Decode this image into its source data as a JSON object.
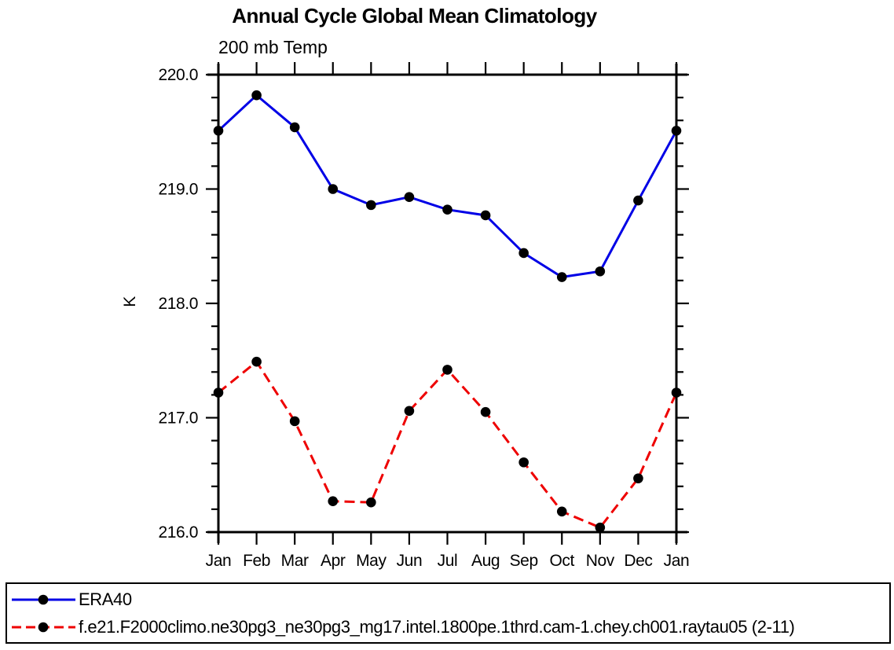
{
  "title": "Annual Cycle Global Mean Climatology",
  "subtitle": "200 mb Temp",
  "legend": {
    "items": [
      {
        "label": "ERA40"
      },
      {
        "label": "f.e21.F2000climo.ne30pg3_ne30pg3_mg17.intel.1800pe.1thrd.cam-1.chey.ch001.raytau05 (2-11)"
      }
    ]
  },
  "colors": {
    "era40_line": "#0000e6",
    "model_line": "#ee0000",
    "marker": "#000000",
    "axis": "#000000"
  },
  "chart_data": {
    "type": "line",
    "title": "Annual Cycle Global Mean Climatology",
    "subtitle": "200 mb Temp",
    "xlabel": "",
    "ylabel": "K",
    "categories": [
      "Jan",
      "Feb",
      "Mar",
      "Apr",
      "May",
      "Jun",
      "Jul",
      "Aug",
      "Sep",
      "Oct",
      "Nov",
      "Dec",
      "Jan"
    ],
    "series": [
      {
        "name": "ERA40",
        "color": "#0000e6",
        "line_style": "solid",
        "marker": "filled-circle",
        "marker_color": "#000000",
        "values": [
          219.51,
          219.82,
          219.54,
          219.0,
          218.86,
          218.93,
          218.82,
          218.77,
          218.44,
          218.23,
          218.28,
          218.9,
          219.51
        ]
      },
      {
        "name": "f.e21.F2000climo.ne30pg3_ne30pg3_mg17.intel.1800pe.1thrd.cam-1.chey.ch001.raytau05 (2-11)",
        "color": "#ee0000",
        "line_style": "dashed",
        "marker": "filled-circle",
        "marker_color": "#000000",
        "values": [
          217.22,
          217.49,
          216.97,
          216.27,
          216.26,
          217.06,
          217.42,
          217.05,
          216.61,
          216.18,
          216.04,
          216.47,
          217.22
        ]
      }
    ],
    "ylim": [
      216.0,
      220.0
    ],
    "ytick_major_step": 1.0,
    "ytick_minor_step": 0.2,
    "ytick_labels": [
      "220.0",
      "219.0",
      "218.0",
      "217.0",
      "216.0"
    ],
    "grid": false,
    "legend_position": "bottom"
  }
}
